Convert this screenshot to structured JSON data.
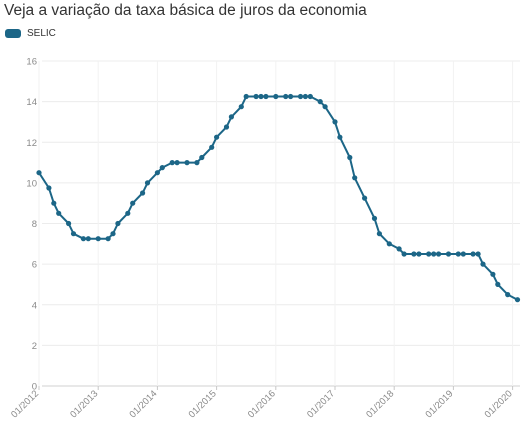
{
  "chart_data": {
    "type": "line",
    "title": "Veja a variação da taxa básica de juros da economia",
    "xlabel": "",
    "ylabel": "",
    "ylim": [
      0,
      16
    ],
    "yticks": [
      "0",
      "2",
      "4",
      "6",
      "8",
      "10",
      "12",
      "14",
      "16"
    ],
    "xticks": [
      "01/2012",
      "01/2013",
      "01/2014",
      "01/2015",
      "01/2016",
      "01/2017",
      "01/2018",
      "01/2019",
      "01/2020"
    ],
    "grid": true,
    "legend_position": "top-left",
    "series": [
      {
        "name": "SELIC",
        "color": "#1c6687",
        "points": [
          [
            "2012-01",
            10.5
          ],
          [
            "2012-03",
            9.75
          ],
          [
            "2012-04",
            9.0
          ],
          [
            "2012-05",
            8.5
          ],
          [
            "2012-07",
            8.0
          ],
          [
            "2012-08",
            7.5
          ],
          [
            "2012-10",
            7.25
          ],
          [
            "2012-11",
            7.25
          ],
          [
            "2013-01",
            7.25
          ],
          [
            "2013-03",
            7.25
          ],
          [
            "2013-04",
            7.5
          ],
          [
            "2013-05",
            8.0
          ],
          [
            "2013-07",
            8.5
          ],
          [
            "2013-08",
            9.0
          ],
          [
            "2013-10",
            9.5
          ],
          [
            "2013-11",
            10.0
          ],
          [
            "2014-01",
            10.5
          ],
          [
            "2014-02",
            10.75
          ],
          [
            "2014-04",
            11.0
          ],
          [
            "2014-05",
            11.0
          ],
          [
            "2014-07",
            11.0
          ],
          [
            "2014-09",
            11.0
          ],
          [
            "2014-10",
            11.25
          ],
          [
            "2014-12",
            11.75
          ],
          [
            "2015-01",
            12.25
          ],
          [
            "2015-03",
            12.75
          ],
          [
            "2015-04",
            13.25
          ],
          [
            "2015-06",
            13.75
          ],
          [
            "2015-07",
            14.25
          ],
          [
            "2015-09",
            14.25
          ],
          [
            "2015-10",
            14.25
          ],
          [
            "2015-11",
            14.25
          ],
          [
            "2016-01",
            14.25
          ],
          [
            "2016-03",
            14.25
          ],
          [
            "2016-04",
            14.25
          ],
          [
            "2016-06",
            14.25
          ],
          [
            "2016-07",
            14.25
          ],
          [
            "2016-08",
            14.25
          ],
          [
            "2016-10",
            14.0
          ],
          [
            "2016-11",
            13.75
          ],
          [
            "2017-01",
            13.0
          ],
          [
            "2017-02",
            12.25
          ],
          [
            "2017-04",
            11.25
          ],
          [
            "2017-05",
            10.25
          ],
          [
            "2017-07",
            9.25
          ],
          [
            "2017-09",
            8.25
          ],
          [
            "2017-10",
            7.5
          ],
          [
            "2017-12",
            7.0
          ],
          [
            "2018-02",
            6.75
          ],
          [
            "2018-03",
            6.5
          ],
          [
            "2018-05",
            6.5
          ],
          [
            "2018-06",
            6.5
          ],
          [
            "2018-08",
            6.5
          ],
          [
            "2018-09",
            6.5
          ],
          [
            "2018-10",
            6.5
          ],
          [
            "2018-12",
            6.5
          ],
          [
            "2019-02",
            6.5
          ],
          [
            "2019-03",
            6.5
          ],
          [
            "2019-05",
            6.5
          ],
          [
            "2019-06",
            6.5
          ],
          [
            "2019-07",
            6.0
          ],
          [
            "2019-09",
            5.5
          ],
          [
            "2019-10",
            5.0
          ],
          [
            "2019-12",
            4.5
          ],
          [
            "2020-02",
            4.25
          ]
        ]
      }
    ]
  }
}
